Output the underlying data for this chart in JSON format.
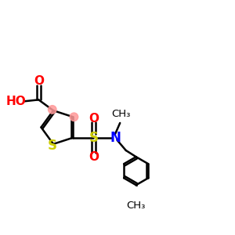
{
  "bg_color": "#ffffff",
  "bond_color": "#000000",
  "sulfur_color": "#cccc00",
  "oxygen_color": "#ff0000",
  "nitrogen_color": "#0000ff",
  "highlight_color": "#ff9999",
  "line_width": 1.8,
  "fig_size": [
    3.0,
    3.0
  ],
  "dpi": 100,
  "xlim": [
    0,
    12
  ],
  "ylim": [
    2,
    9
  ]
}
